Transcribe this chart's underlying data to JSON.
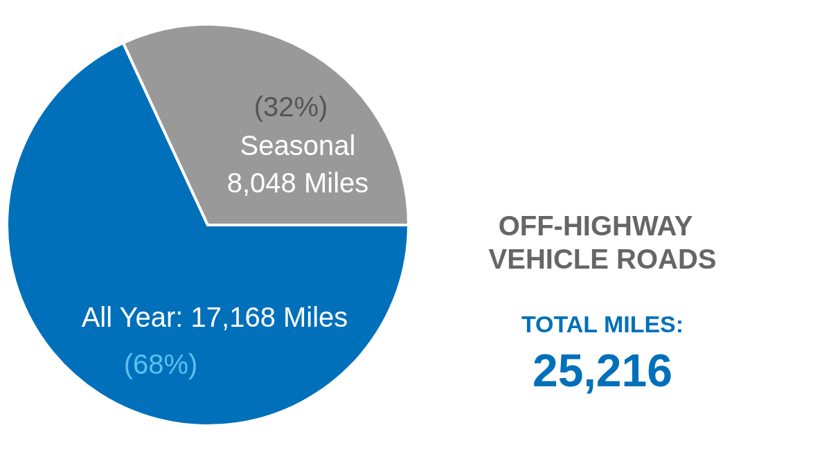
{
  "chart_data": {
    "type": "pie",
    "title": "OFF-HIGHWAY VEHICLE ROADS",
    "subtitle": "TOTAL MILES:",
    "categories": [
      "All Year",
      "Seasonal"
    ],
    "values": [
      17168,
      8048
    ],
    "colors": [
      "#0070bb",
      "#999999"
    ],
    "value_labels": [
      "17,168 Miles",
      "8,048 Miles"
    ],
    "annotations": [
      "(68%)",
      "(32%)"
    ],
    "totals": [
      "25,216"
    ]
  }
}
